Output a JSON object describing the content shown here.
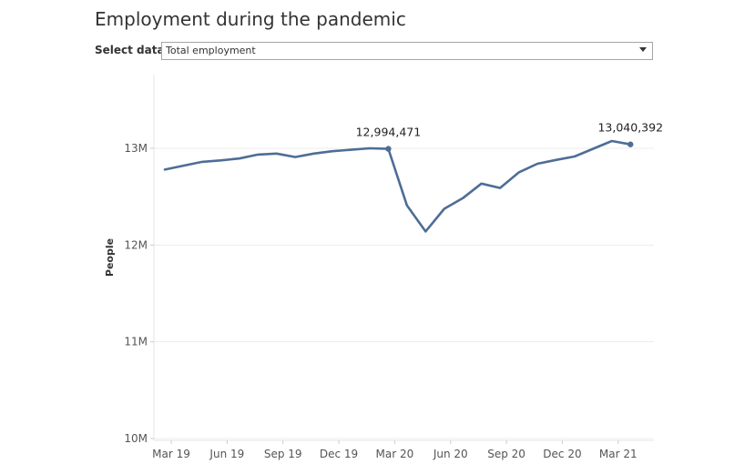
{
  "title": "Employment during the pandemic",
  "filter": {
    "label": "Select data",
    "selected": "Total employment"
  },
  "chart_data": {
    "type": "line",
    "ylabel": "People",
    "ylim": [
      10000000,
      13600000
    ],
    "y_ticks": [
      {
        "value": 10000000,
        "label": "10M"
      },
      {
        "value": 11000000,
        "label": "11M"
      },
      {
        "value": 12000000,
        "label": "12M"
      },
      {
        "value": 13000000,
        "label": "13M"
      }
    ],
    "x_ticks": [
      {
        "index": 0,
        "label": "Mar 19"
      },
      {
        "index": 3,
        "label": "Jun 19"
      },
      {
        "index": 6,
        "label": "Sep 19"
      },
      {
        "index": 9,
        "label": "Dec 19"
      },
      {
        "index": 12,
        "label": "Mar 20"
      },
      {
        "index": 15,
        "label": "Jun 20"
      },
      {
        "index": 18,
        "label": "Sep 20"
      },
      {
        "index": 21,
        "label": "Dec 20"
      },
      {
        "index": 24,
        "label": "Mar 21"
      }
    ],
    "x": [
      "Mar 19",
      "Apr 19",
      "May 19",
      "Jun 19",
      "Jul 19",
      "Aug 19",
      "Sep 19",
      "Oct 19",
      "Nov 19",
      "Dec 19",
      "Jan 20",
      "Feb 20",
      "Mar 20",
      "Apr 20",
      "May 20",
      "Jun 20",
      "Jul 20",
      "Aug 20",
      "Sep 20",
      "Oct 20",
      "Nov 20",
      "Dec 20",
      "Jan 21",
      "Feb 21",
      "Mar 21",
      "Apr 21"
    ],
    "series": [
      {
        "color": "#4e6d96",
        "values": [
          12780000,
          12820000,
          12860000,
          12875000,
          12895000,
          12935000,
          12945000,
          12910000,
          12945000,
          12970000,
          12985000,
          13000000,
          12994471,
          12410000,
          12140000,
          12375000,
          12485000,
          12635000,
          12590000,
          12750000,
          12840000,
          12880000,
          12915000,
          12995000,
          13075000,
          13040392
        ]
      }
    ],
    "annotations": [
      {
        "index": 12,
        "label": "12,994,471"
      },
      {
        "index": 25,
        "label": "13,040,392"
      }
    ],
    "grid": true
  }
}
